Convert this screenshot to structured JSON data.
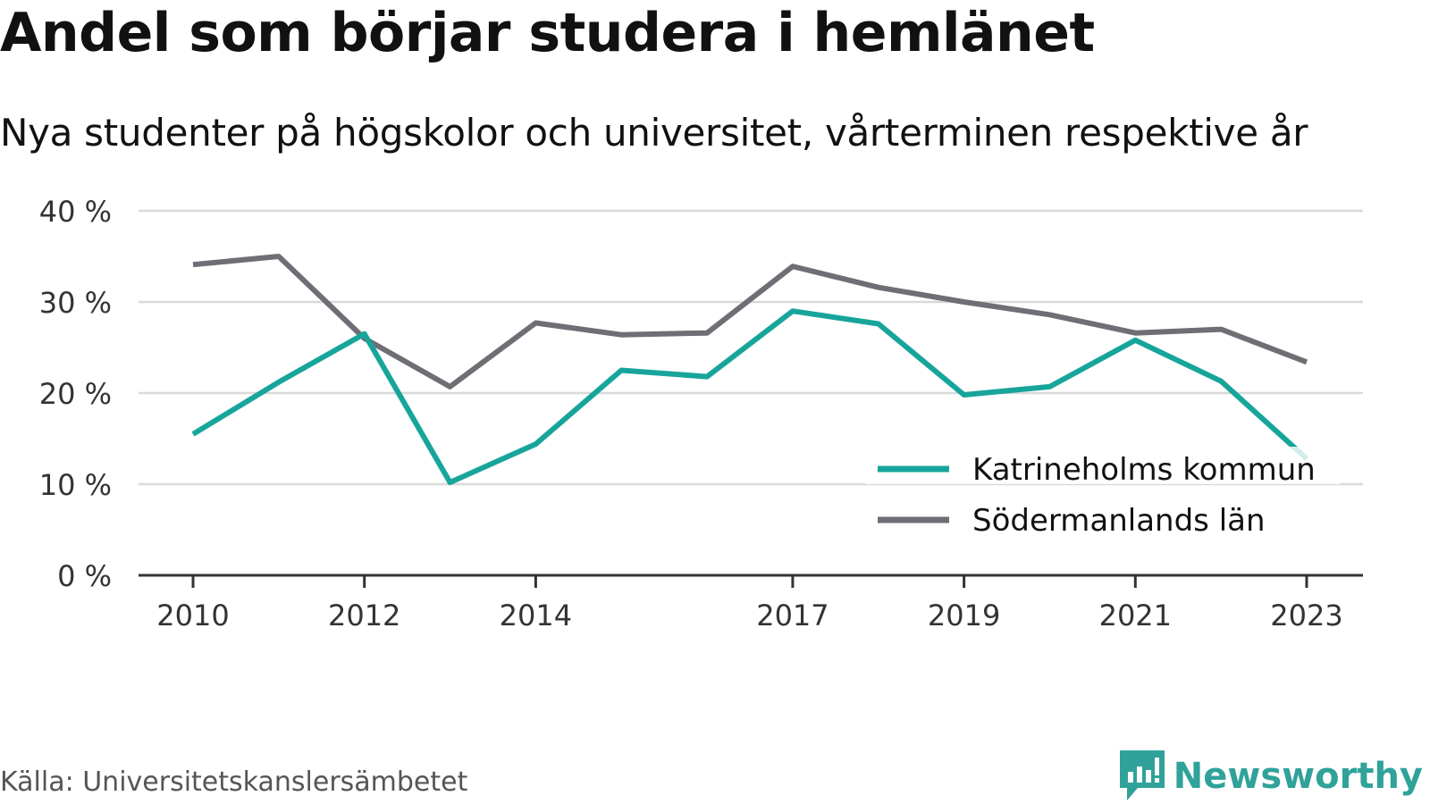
{
  "header": {
    "title": "Andel som börjar studera i hemlänet",
    "subtitle": "Nya studenter på högskolor och universitet, vårterminen respektive år"
  },
  "footer": {
    "source": "Källa: Universitetskanslersämbetet",
    "brand": "Newsworthy"
  },
  "colors": {
    "katrineholm": "#17a59b",
    "sodermanland": "#6f6e75",
    "grid": "#d9d9d9",
    "axis": "#333333",
    "brand": "#30a29a"
  },
  "chart_data": {
    "type": "line",
    "x": [
      2010,
      2011,
      2012,
      2013,
      2014,
      2015,
      2016,
      2017,
      2018,
      2019,
      2020,
      2021,
      2022,
      2023
    ],
    "x_tick_labels": [
      "2010",
      "2012",
      "2014",
      "2017",
      "2019",
      "2021",
      "2023"
    ],
    "y_tick_labels": [
      "0 %",
      "10 %",
      "20 %",
      "30 %",
      "40 %"
    ],
    "ylim": [
      0,
      40
    ],
    "grid": true,
    "legend_position": "bottom-right",
    "series": [
      {
        "name": "Katrineholms kommun",
        "values": [
          15.5,
          21.2,
          26.5,
          10.2,
          14.4,
          22.5,
          21.8,
          29.0,
          27.6,
          19.8,
          20.7,
          25.8,
          21.3,
          12.8
        ]
      },
      {
        "name": "Södermanlands län",
        "values": [
          34.1,
          35.0,
          26.0,
          20.7,
          27.7,
          26.4,
          26.6,
          33.9,
          31.6,
          30.0,
          28.6,
          26.6,
          27.0,
          23.4
        ]
      }
    ]
  }
}
